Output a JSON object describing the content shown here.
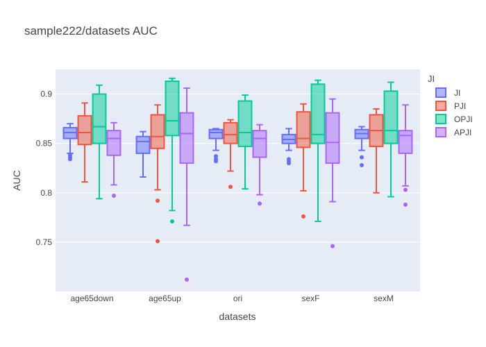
{
  "chart_data": {
    "type": "box",
    "title": "sample222/datasets AUC",
    "xlabel": "datasets",
    "ylabel": "AUC",
    "ylim": [
      0.7,
      0.925
    ],
    "yticks": [
      {
        "value": 0.75,
        "label": "0.75"
      },
      {
        "value": 0.8,
        "label": "0.8"
      },
      {
        "value": 0.85,
        "label": "0.85"
      },
      {
        "value": 0.9,
        "label": "0.9"
      }
    ],
    "categories": [
      "age65down",
      "age65up",
      "ori",
      "sexF",
      "sexM"
    ],
    "grid": true,
    "legend_position": "right",
    "legend_title": "JI",
    "series": [
      {
        "name": "JI",
        "color": "#636efa",
        "boxes": [
          {
            "low": 0.84,
            "q1": 0.855,
            "median": 0.861,
            "q3": 0.866,
            "high": 0.87,
            "outliers": [
              0.834,
              0.836,
              0.838
            ]
          },
          {
            "low": 0.816,
            "q1": 0.84,
            "median": 0.852,
            "q3": 0.857,
            "high": 0.862,
            "outliers": []
          },
          {
            "low": 0.843,
            "q1": 0.855,
            "median": 0.861,
            "q3": 0.864,
            "high": 0.865,
            "outliers": [
              0.832,
              0.834,
              0.837
            ]
          },
          {
            "low": 0.843,
            "q1": 0.85,
            "median": 0.854,
            "q3": 0.859,
            "high": 0.865,
            "outliers": [
              0.83,
              0.832,
              0.834
            ]
          },
          {
            "low": 0.843,
            "q1": 0.855,
            "median": 0.86,
            "q3": 0.864,
            "high": 0.867,
            "outliers": [
              0.828,
              0.836
            ]
          }
        ]
      },
      {
        "name": "PJI",
        "color": "#ef553b",
        "boxes": [
          {
            "low": 0.811,
            "q1": 0.849,
            "median": 0.861,
            "q3": 0.878,
            "high": 0.891,
            "outliers": []
          },
          {
            "low": 0.803,
            "q1": 0.845,
            "median": 0.857,
            "q3": 0.879,
            "high": 0.889,
            "outliers": [
              0.751,
              0.792
            ]
          },
          {
            "low": 0.822,
            "q1": 0.85,
            "median": 0.859,
            "q3": 0.871,
            "high": 0.874,
            "outliers": [
              0.806
            ]
          },
          {
            "low": 0.802,
            "q1": 0.846,
            "median": 0.855,
            "q3": 0.882,
            "high": 0.89,
            "outliers": [
              0.776
            ]
          },
          {
            "low": 0.8,
            "q1": 0.847,
            "median": 0.863,
            "q3": 0.879,
            "high": 0.885,
            "outliers": []
          }
        ]
      },
      {
        "name": "OPJI",
        "color": "#00cc96",
        "boxes": [
          {
            "low": 0.794,
            "q1": 0.85,
            "median": 0.867,
            "q3": 0.9,
            "high": 0.909,
            "outliers": []
          },
          {
            "low": 0.782,
            "q1": 0.858,
            "median": 0.873,
            "q3": 0.913,
            "high": 0.916,
            "outliers": [
              0.771
            ]
          },
          {
            "low": 0.804,
            "q1": 0.847,
            "median": 0.861,
            "q3": 0.893,
            "high": 0.899,
            "outliers": []
          },
          {
            "low": 0.771,
            "q1": 0.85,
            "median": 0.859,
            "q3": 0.91,
            "high": 0.914,
            "outliers": []
          },
          {
            "low": 0.796,
            "q1": 0.85,
            "median": 0.863,
            "q3": 0.903,
            "high": 0.912,
            "outliers": []
          }
        ]
      },
      {
        "name": "APJI",
        "color": "#ab63fa",
        "boxes": [
          {
            "low": 0.808,
            "q1": 0.838,
            "median": 0.855,
            "q3": 0.863,
            "high": 0.871,
            "outliers": [
              0.797
            ]
          },
          {
            "low": 0.767,
            "q1": 0.83,
            "median": 0.86,
            "q3": 0.881,
            "high": 0.906,
            "outliers": [
              0.712
            ]
          },
          {
            "low": 0.798,
            "q1": 0.836,
            "median": 0.855,
            "q3": 0.863,
            "high": 0.869,
            "outliers": [
              0.789
            ]
          },
          {
            "low": 0.791,
            "q1": 0.83,
            "median": 0.851,
            "q3": 0.881,
            "high": 0.895,
            "outliers": [
              0.746
            ]
          },
          {
            "low": 0.807,
            "q1": 0.84,
            "median": 0.858,
            "q3": 0.863,
            "high": 0.889,
            "outliers": [
              0.788,
              0.803
            ]
          }
        ]
      }
    ]
  }
}
